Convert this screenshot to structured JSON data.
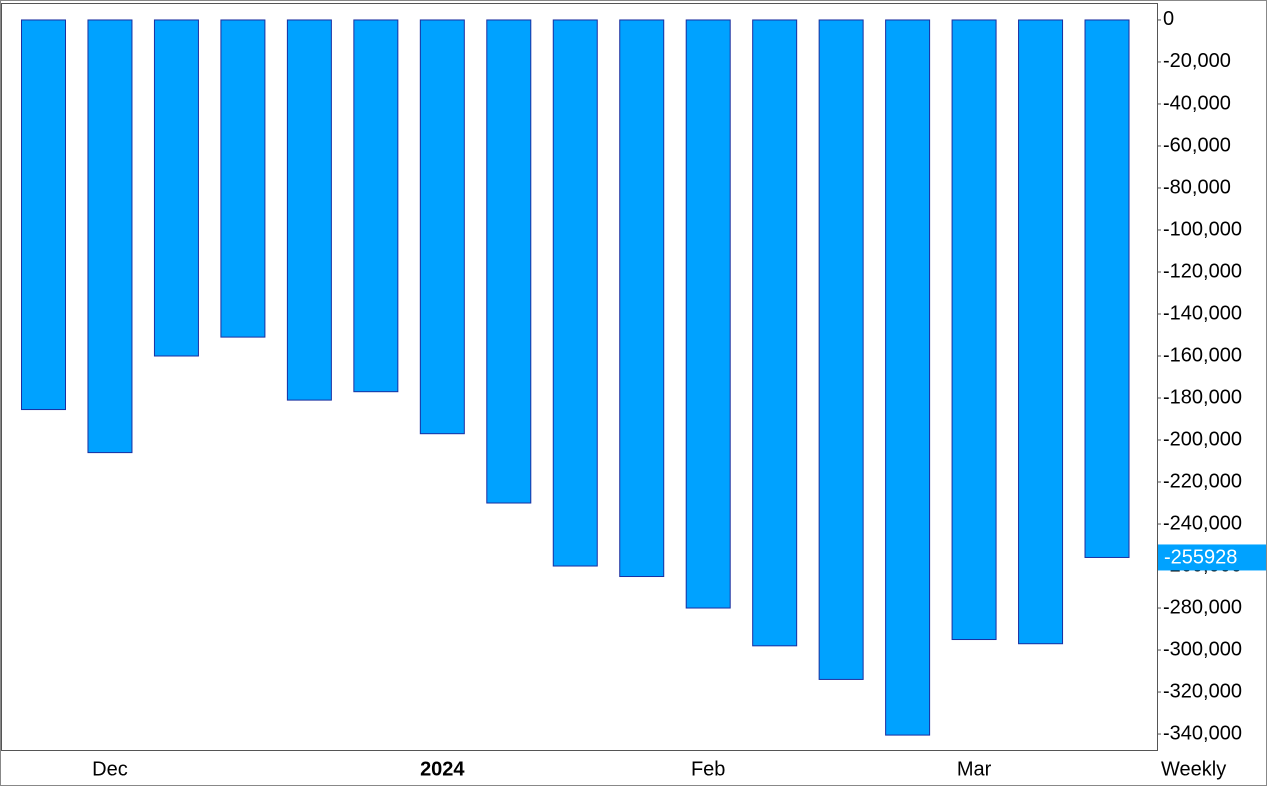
{
  "chart_data": {
    "type": "bar",
    "categories": [
      null,
      "Dec",
      null,
      null,
      null,
      null,
      "2024",
      null,
      null,
      null,
      "Feb",
      null,
      null,
      null,
      "Mar",
      null,
      null
    ],
    "values": [
      -185500,
      -206000,
      -160000,
      -151000,
      -181000,
      -177000,
      -197000,
      -230000,
      -260000,
      -265000,
      -280000,
      -298000,
      -314000,
      -340500,
      -295000,
      -297000,
      -255928
    ],
    "color": "#00a2ff",
    "edge_color": "#1a2fa0",
    "ylim": [
      -347600,
      7600
    ],
    "yticks": [
      0,
      {
        "value": -20000,
        "label": "-20,000"
      },
      {
        "value": -40000,
        "label": "-40,000"
      },
      {
        "value": -60000,
        "label": "-60,000"
      },
      {
        "value": -80000,
        "label": "-80,000"
      },
      {
        "value": -100000,
        "label": "-100,000"
      },
      {
        "value": -120000,
        "label": "-120,000"
      },
      {
        "value": -140000,
        "label": "-140,000"
      },
      {
        "value": -160000,
        "label": "-160,000"
      },
      {
        "value": -180000,
        "label": "-180,000"
      },
      {
        "value": -200000,
        "label": "-200,000"
      },
      {
        "value": -220000,
        "label": "-220,000"
      },
      {
        "value": -240000,
        "label": "-240,000"
      },
      {
        "value": -260000,
        "label": "-260,000"
      },
      {
        "value": -280000,
        "label": "-280,000"
      },
      {
        "value": -300000,
        "label": "-300,000"
      },
      {
        "value": -320000,
        "label": "-320,000"
      },
      {
        "value": -340000,
        "label": "-340,000"
      }
    ],
    "grid": false,
    "period": "Weekly"
  }
}
